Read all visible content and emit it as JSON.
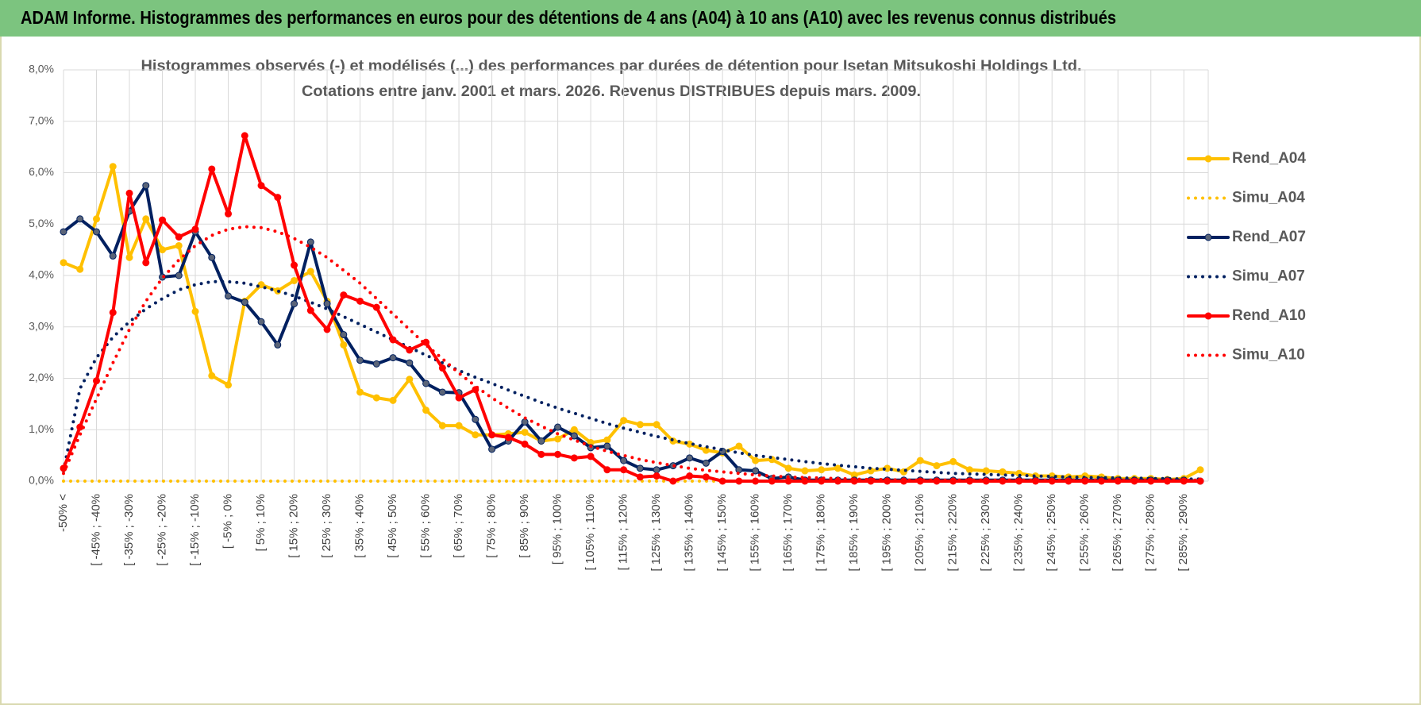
{
  "chart_data": {
    "type": "line",
    "header": "ADAM Informe. Histogrammes des performances en euros pour des détentions de 4 ans (A04) à 10 ans (A10) avec les revenus connus distribués",
    "title": [
      "Histogrammes observés (-) et modélisés (...) des performances par durées de détention pour Isetan Mitsukoshi Holdings Ltd.",
      "Cotations entre janv. 2001 et mars. 2026. Revenus DISTRIBUES depuis mars. 2009."
    ],
    "categories": [
      "-50% <",
      null,
      "[ -45% ; -40%",
      null,
      "[ -35% ; -30%",
      null,
      "[ -25% ; -20%",
      null,
      "[ -15% ; -10%",
      null,
      "[ -5% ; 0%",
      null,
      "[ 5% ; 10%",
      null,
      "[ 15% ; 20%",
      null,
      "[ 25% ; 30%",
      null,
      "[ 35% ; 40%",
      null,
      "[ 45% ; 50%",
      null,
      "[ 55% ; 60%",
      null,
      "[ 65% ; 70%",
      null,
      "[ 75% ; 80%",
      null,
      "[ 85% ; 90%",
      null,
      "[ 95% ; 100%",
      null,
      "[ 105% ; 110%",
      null,
      "[ 115% ; 120%",
      null,
      "[ 125% ; 130%",
      null,
      "[ 135% ; 140%",
      null,
      "[ 145% ; 150%",
      null,
      "[ 155% ; 160%",
      null,
      "[ 165% ; 170%",
      null,
      "[ 175% ; 180%",
      null,
      "[ 185% ; 190%",
      null,
      "[ 195% ; 200%",
      null,
      "[ 205% ; 210%",
      null,
      "[ 215% ; 220%",
      null,
      "[ 225% ; 230%",
      null,
      "[ 235% ; 240%",
      null,
      "[ 245% ; 250%",
      null,
      "[ 255% ; 260%",
      null,
      "[ 265% ; 270%",
      null,
      "[ 275% ; 280%",
      null,
      "[ 285% ; 290%",
      null
    ],
    "series": [
      {
        "name": "Rend_A04",
        "color": "#ffc000",
        "line_style": "solid",
        "marker": true,
        "values": [
          4.25,
          4.12,
          5.1,
          6.12,
          4.35,
          5.1,
          4.5,
          4.58,
          3.3,
          2.05,
          1.87,
          3.5,
          3.82,
          3.7,
          3.9,
          4.08,
          3.5,
          2.65,
          1.73,
          1.62,
          1.57,
          1.98,
          1.38,
          1.08,
          1.08,
          0.9,
          0.9,
          0.92,
          0.95,
          0.78,
          0.82,
          1.0,
          0.75,
          0.8,
          1.18,
          1.1,
          1.1,
          0.78,
          0.72,
          0.6,
          0.55,
          0.68,
          0.4,
          0.42,
          0.25,
          0.2,
          0.22,
          0.25,
          0.12,
          0.2,
          0.25,
          0.18,
          0.4,
          0.3,
          0.38,
          0.22,
          0.2,
          0.18,
          0.15,
          0.1,
          0.1,
          0.08,
          0.1,
          0.08,
          0.05,
          0.05,
          0.05,
          0.03,
          0.05,
          0.22
        ]
      },
      {
        "name": "Simu_A04",
        "color": "#ffc000",
        "line_style": "dotted",
        "marker": false,
        "values": [
          0,
          0,
          0,
          0,
          0,
          0,
          0,
          0,
          0,
          0,
          0,
          0,
          0,
          0,
          0,
          0,
          0,
          0,
          0,
          0,
          0,
          0,
          0,
          0,
          0,
          0,
          0,
          0,
          0,
          0,
          0,
          0,
          0,
          0,
          0,
          0,
          0,
          0,
          0,
          0,
          0,
          0,
          0,
          0,
          0,
          0,
          0,
          0,
          0,
          0,
          0,
          0,
          0,
          0,
          0,
          0,
          0,
          0,
          0,
          0,
          0,
          0,
          0,
          0,
          0,
          0,
          0,
          0,
          0,
          0
        ]
      },
      {
        "name": "Rend_A07",
        "color": "#002060",
        "line_style": "solid",
        "marker": true,
        "values": [
          4.85,
          5.1,
          4.85,
          4.38,
          5.25,
          5.75,
          3.97,
          4.0,
          4.85,
          4.35,
          3.6,
          3.48,
          3.1,
          2.65,
          3.45,
          4.65,
          3.45,
          2.85,
          2.35,
          2.28,
          2.4,
          2.3,
          1.9,
          1.73,
          1.72,
          1.2,
          0.62,
          0.78,
          1.15,
          0.78,
          1.05,
          0.88,
          0.65,
          0.68,
          0.4,
          0.25,
          0.22,
          0.3,
          0.45,
          0.35,
          0.58,
          0.22,
          0.2,
          0.05,
          0.08,
          0.02,
          0.02,
          0.02,
          0.02,
          0.02,
          0.02,
          0.02,
          0.02,
          0.02,
          0.02,
          0.02,
          0.02,
          0.02,
          0.02,
          0.02,
          0.02,
          0.02,
          0.02,
          0.02,
          0.02,
          0.02,
          0.02,
          0.02,
          0.02,
          0.0
        ]
      },
      {
        "name": "Simu_A07",
        "color": "#002060",
        "line_style": "dotted",
        "marker": false,
        "values": [
          0.2,
          1.8,
          2.4,
          2.8,
          3.1,
          3.35,
          3.55,
          3.72,
          3.82,
          3.88,
          3.88,
          3.85,
          3.78,
          3.7,
          3.6,
          3.48,
          3.35,
          3.2,
          3.05,
          2.9,
          2.75,
          2.6,
          2.45,
          2.3,
          2.15,
          2.02,
          1.9,
          1.77,
          1.65,
          1.53,
          1.42,
          1.32,
          1.22,
          1.12,
          1.03,
          0.95,
          0.87,
          0.8,
          0.73,
          0.67,
          0.61,
          0.55,
          0.5,
          0.46,
          0.42,
          0.38,
          0.34,
          0.31,
          0.28,
          0.25,
          0.23,
          0.21,
          0.19,
          0.17,
          0.15,
          0.14,
          0.13,
          0.12,
          0.11,
          0.1,
          0.09,
          0.08,
          0.07,
          0.07,
          0.06,
          0.06,
          0.05,
          0.05,
          0.04,
          0.04
        ]
      },
      {
        "name": "Rend_A10",
        "color": "#ff0000",
        "line_style": "solid",
        "marker": true,
        "values": [
          0.25,
          1.05,
          1.95,
          3.28,
          5.6,
          4.25,
          5.08,
          4.75,
          4.9,
          6.07,
          5.2,
          6.72,
          5.75,
          5.52,
          4.2,
          3.32,
          2.95,
          3.62,
          3.5,
          3.38,
          2.75,
          2.55,
          2.7,
          2.2,
          1.62,
          1.78,
          0.9,
          0.85,
          0.72,
          0.52,
          0.52,
          0.45,
          0.48,
          0.22,
          0.22,
          0.08,
          0.1,
          0.0,
          0.1,
          0.08,
          0.0,
          0.0,
          0.0,
          0.0,
          0.0,
          0.0,
          0.0,
          0.0,
          0.0,
          0.0,
          0.0,
          0.0,
          0.0,
          0.0,
          0.0,
          0.0,
          0.0,
          0.0,
          0.0,
          0.0,
          0.0,
          0.0,
          0.0,
          0.0,
          0.0,
          0.0,
          0.0,
          0.0,
          0.0,
          0.0
        ]
      },
      {
        "name": "Simu_A10",
        "color": "#ff0000",
        "line_style": "dotted",
        "marker": false,
        "values": [
          0.15,
          0.9,
          1.6,
          2.3,
          2.95,
          3.5,
          3.95,
          4.3,
          4.58,
          4.78,
          4.9,
          4.95,
          4.93,
          4.85,
          4.72,
          4.55,
          4.35,
          4.1,
          3.85,
          3.55,
          3.25,
          2.95,
          2.65,
          2.38,
          2.1,
          1.85,
          1.62,
          1.42,
          1.23,
          1.07,
          0.92,
          0.8,
          0.68,
          0.58,
          0.5,
          0.42,
          0.36,
          0.3,
          0.25,
          0.21,
          0.18,
          0.15,
          0.12,
          0.1,
          0.08,
          0.07,
          0.06,
          0.05,
          0.04,
          0.03,
          0.03,
          0.02,
          0.02,
          0.02,
          0.02,
          0.02,
          0.02,
          0.02,
          0.02,
          0.02,
          0.02,
          0.02,
          0.02,
          0.02,
          0.02,
          0.02,
          0.02,
          0.02,
          0.02,
          0.02
        ]
      }
    ],
    "ylim": [
      0,
      8
    ],
    "yticks": [
      {
        "value": 0,
        "label": "0,0%"
      },
      {
        "value": 1,
        "label": "1,0%"
      },
      {
        "value": 2,
        "label": "2,0%"
      },
      {
        "value": 3,
        "label": "3,0%"
      },
      {
        "value": 4,
        "label": "4,0%"
      },
      {
        "value": 5,
        "label": "5,0%"
      },
      {
        "value": 6,
        "label": "6,0%"
      },
      {
        "value": 7,
        "label": "7,0%"
      },
      {
        "value": 8,
        "label": "8,0%"
      }
    ],
    "grid": true,
    "legend": "right"
  }
}
